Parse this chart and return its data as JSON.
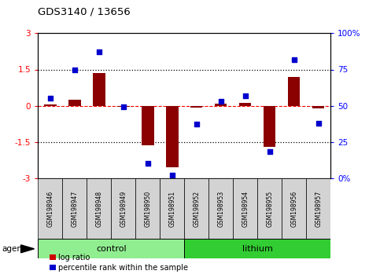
{
  "title": "GDS3140 / 13656",
  "samples": [
    "GSM198946",
    "GSM198947",
    "GSM198948",
    "GSM198949",
    "GSM198950",
    "GSM198951",
    "GSM198952",
    "GSM198953",
    "GSM198954",
    "GSM198955",
    "GSM198956",
    "GSM198957"
  ],
  "log_ratio": [
    0.05,
    0.25,
    1.35,
    -0.05,
    -1.65,
    -2.55,
    -0.08,
    0.08,
    0.1,
    -1.7,
    1.2,
    -0.1
  ],
  "percentile_rank": [
    55,
    75,
    87,
    49,
    10,
    2,
    37,
    53,
    57,
    18,
    82,
    38
  ],
  "groups": [
    {
      "label": "control",
      "start": 0,
      "end": 5,
      "color": "#90EE90"
    },
    {
      "label": "lithium",
      "start": 6,
      "end": 11,
      "color": "#32CD32"
    }
  ],
  "ylim_left": [
    -3,
    3
  ],
  "ylim_right": [
    0,
    100
  ],
  "yticks_left": [
    -3,
    -1.5,
    0,
    1.5,
    3
  ],
  "yticks_right": [
    0,
    25,
    50,
    75,
    100
  ],
  "yticklabels_left": [
    "-3",
    "-1.5",
    "0",
    "1.5",
    "3"
  ],
  "yticklabels_right": [
    "0%",
    "25",
    "50",
    "75",
    "100%"
  ],
  "bar_color": "#8B0000",
  "dot_color": "#0000CD",
  "bar_width": 0.5,
  "legend_items": [
    "log ratio",
    "percentile rank within the sample"
  ],
  "legend_colors": [
    "#CC0000",
    "#0000CC"
  ],
  "agent_label": "agent",
  "background_color": "#ffffff",
  "plot_bg": "#ffffff",
  "sample_box_color": "#D3D3D3",
  "control_color": "#90EE90",
  "lithium_color": "#32CD32"
}
